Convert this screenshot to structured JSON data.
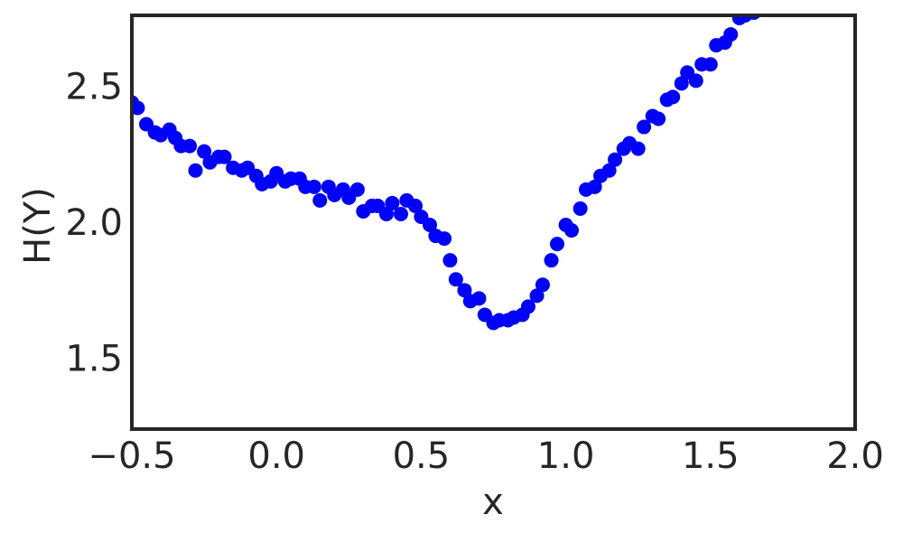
{
  "chart_data": {
    "type": "scatter",
    "x_label": "x",
    "y_label": "H(Y)",
    "color": "#0000ff",
    "x": [
      -0.5,
      -0.48,
      -0.45,
      -0.42,
      -0.4,
      -0.37,
      -0.35,
      -0.33,
      -0.3,
      -0.28,
      -0.25,
      -0.23,
      -0.2,
      -0.18,
      -0.15,
      -0.12,
      -0.1,
      -0.07,
      -0.05,
      -0.02,
      0.0,
      0.03,
      0.05,
      0.08,
      0.1,
      0.13,
      0.15,
      0.18,
      0.2,
      0.23,
      0.25,
      0.28,
      0.3,
      0.33,
      0.35,
      0.38,
      0.4,
      0.43,
      0.45,
      0.48,
      0.5,
      0.53,
      0.55,
      0.58,
      0.6,
      0.62,
      0.65,
      0.67,
      0.7,
      0.72,
      0.75,
      0.77,
      0.8,
      0.82,
      0.85,
      0.87,
      0.9,
      0.92,
      0.95,
      0.97,
      1.0,
      1.02,
      1.05,
      1.07,
      1.1,
      1.12,
      1.15,
      1.17,
      1.2,
      1.22,
      1.25,
      1.27,
      1.3,
      1.32,
      1.35,
      1.37,
      1.4,
      1.42,
      1.45,
      1.47,
      1.5,
      1.52,
      1.55,
      1.57,
      1.6,
      1.62,
      1.65
    ],
    "values": [
      2.45,
      2.43,
      2.37,
      2.34,
      2.33,
      2.35,
      2.32,
      2.29,
      2.29,
      2.2,
      2.27,
      2.23,
      2.25,
      2.25,
      2.21,
      2.2,
      2.21,
      2.18,
      2.15,
      2.16,
      2.19,
      2.16,
      2.17,
      2.17,
      2.14,
      2.14,
      2.09,
      2.14,
      2.11,
      2.13,
      2.1,
      2.13,
      2.05,
      2.07,
      2.07,
      2.04,
      2.08,
      2.04,
      2.09,
      2.07,
      2.03,
      2.0,
      1.96,
      1.95,
      1.87,
      1.8,
      1.76,
      1.72,
      1.73,
      1.67,
      1.64,
      1.65,
      1.65,
      1.66,
      1.67,
      1.7,
      1.74,
      1.78,
      1.87,
      1.93,
      2.0,
      1.98,
      2.06,
      2.13,
      2.14,
      2.18,
      2.2,
      2.24,
      2.28,
      2.3,
      2.28,
      2.36,
      2.4,
      2.39,
      2.46,
      2.47,
      2.52,
      2.56,
      2.53,
      2.59,
      2.59,
      2.66,
      2.67,
      2.7,
      2.76,
      2.77,
      2.78
    ],
    "xlim": [
      -0.5,
      2.0
    ],
    "xticks": [
      {
        "value": -0.5,
        "label": "−0.5"
      },
      {
        "value": 0,
        "label": "0.0"
      },
      0.5,
      {
        "value": 1.0,
        "label": "1.0"
      },
      1.5,
      {
        "value": 2.0,
        "label": "2.0"
      }
    ],
    "ylim": [
      1.25,
      2.77
    ],
    "yticks": [
      1.5,
      {
        "value": 2.0,
        "label": "2.0"
      },
      2.5
    ]
  }
}
